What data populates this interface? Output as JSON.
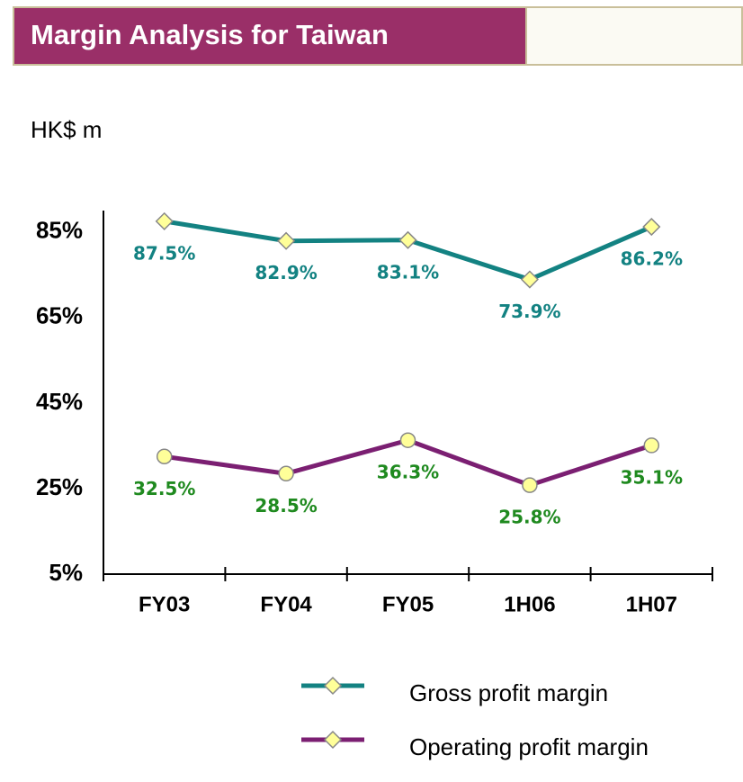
{
  "chart_data": {
    "type": "line",
    "title": "Margin Analysis for Taiwan",
    "subtitle": "HK$ m",
    "categories": [
      "FY03",
      "FY04",
      "FY05",
      "1H06",
      "1H07"
    ],
    "series": [
      {
        "name": "Gross profit margin",
        "color": "#138282",
        "label_color": "#138282",
        "marker": "diamond",
        "values": [
          87.5,
          82.9,
          83.1,
          73.9,
          86.2
        ],
        "value_labels": [
          "87.5%",
          "82.9%",
          "83.1%",
          "73.9%",
          "86.2%"
        ]
      },
      {
        "name": "Operating profit margin",
        "color": "#7b1f72",
        "label_color": "#1f8a1f",
        "marker": "circle",
        "values": [
          32.5,
          28.5,
          36.3,
          25.8,
          35.1
        ],
        "value_labels": [
          "32.5%",
          "28.5%",
          "36.3%",
          "25.8%",
          "35.1%"
        ]
      }
    ],
    "ylim": [
      5,
      90
    ],
    "yticks": [
      {
        "value": 5,
        "label": "5%"
      },
      {
        "value": 25,
        "label": "25%"
      },
      {
        "value": 45,
        "label": "45%"
      },
      {
        "value": 65,
        "label": "65%"
      },
      {
        "value": 85,
        "label": "85%"
      }
    ],
    "grid": false
  }
}
